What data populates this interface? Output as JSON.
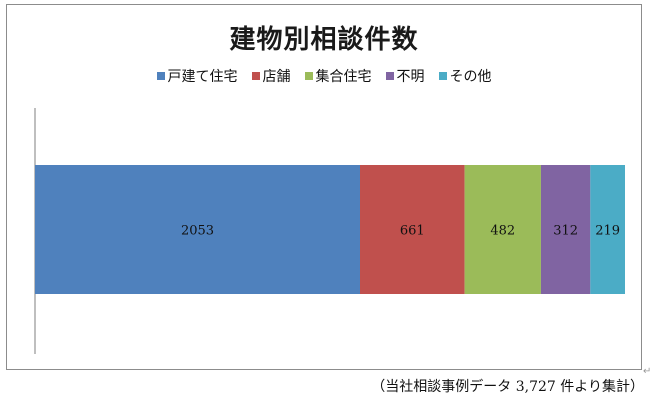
{
  "chart_data": {
    "type": "bar",
    "orientation": "horizontal",
    "stacked": true,
    "title": "建物別相談件数",
    "legend_position": "top",
    "categories": [
      ""
    ],
    "series": [
      {
        "name": "戸建て住宅",
        "values": [
          2053
        ],
        "color": "#4f81bd"
      },
      {
        "name": "店舗",
        "values": [
          661
        ],
        "color": "#c0504d"
      },
      {
        "name": "集合住宅",
        "values": [
          482
        ],
        "color": "#9bbb59"
      },
      {
        "name": "不明",
        "values": [
          312
        ],
        "color": "#8064a2"
      },
      {
        "name": "その他",
        "values": [
          219
        ],
        "color": "#4bacc6"
      }
    ],
    "data_labels": true,
    "grid": false
  },
  "caption": "（当社相談事例データ 3,727 件より集計）",
  "return_mark": "↵"
}
